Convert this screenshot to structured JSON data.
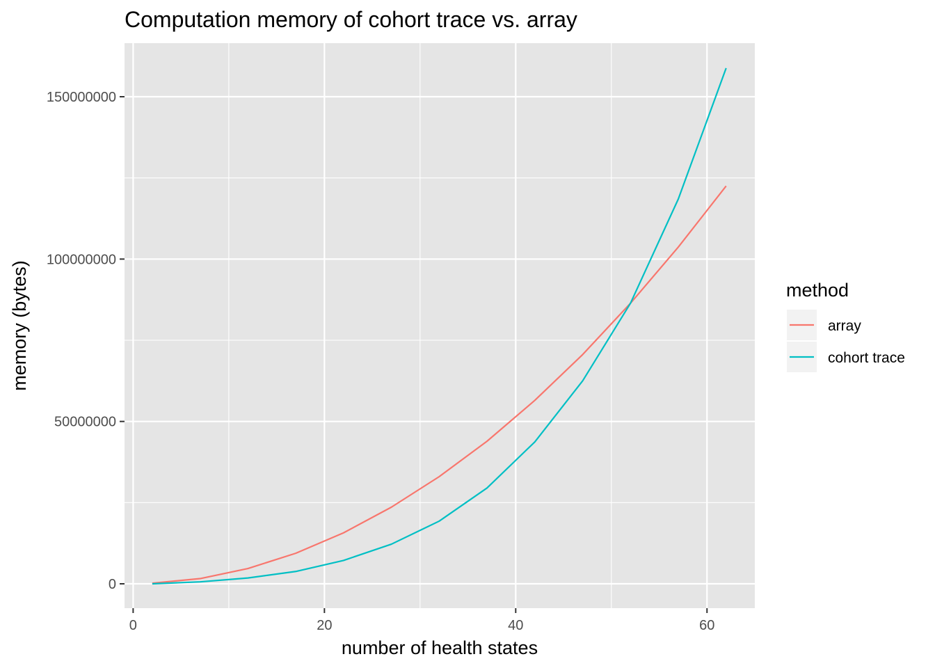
{
  "chart_data": {
    "type": "line",
    "title": "Computation memory of cohort trace vs. array",
    "xlabel": "number of health states",
    "ylabel": "memory (bytes)",
    "xlim": [
      -0.9,
      65
    ],
    "ylim": [
      -7500000,
      166500000
    ],
    "x_ticks": [
      0,
      20,
      40,
      60
    ],
    "x_tick_labels": [
      "0",
      "20",
      "40",
      "60"
    ],
    "x_minor_ticks": [
      10,
      30,
      50
    ],
    "y_ticks": [
      0,
      50000000,
      100000000,
      150000000
    ],
    "y_tick_labels": [
      "0",
      "50000000",
      "100000000",
      "150000000"
    ],
    "y_minor_ticks": [
      25000000,
      75000000,
      125000000
    ],
    "grid": true,
    "panel_background": "#e5e5e5",
    "legend": {
      "title": "method",
      "position": "right"
    },
    "x": [
      2,
      7,
      12,
      17,
      22,
      27,
      32,
      37,
      42,
      47,
      52,
      57,
      62
    ],
    "series": [
      {
        "name": "array",
        "color": "#f8766d",
        "values": [
          200000,
          1600000,
          4700000,
          9400000,
          15700000,
          23600000,
          33000000,
          43900000,
          56500000,
          70600000,
          86400000,
          103700000,
          122500000
        ]
      },
      {
        "name": "cohort trace",
        "color": "#00bfc4",
        "values": [
          0,
          600000,
          1800000,
          3800000,
          7200000,
          12200000,
          19300000,
          29500000,
          43700000,
          62500000,
          86400000,
          118500000,
          158800000
        ]
      }
    ]
  }
}
